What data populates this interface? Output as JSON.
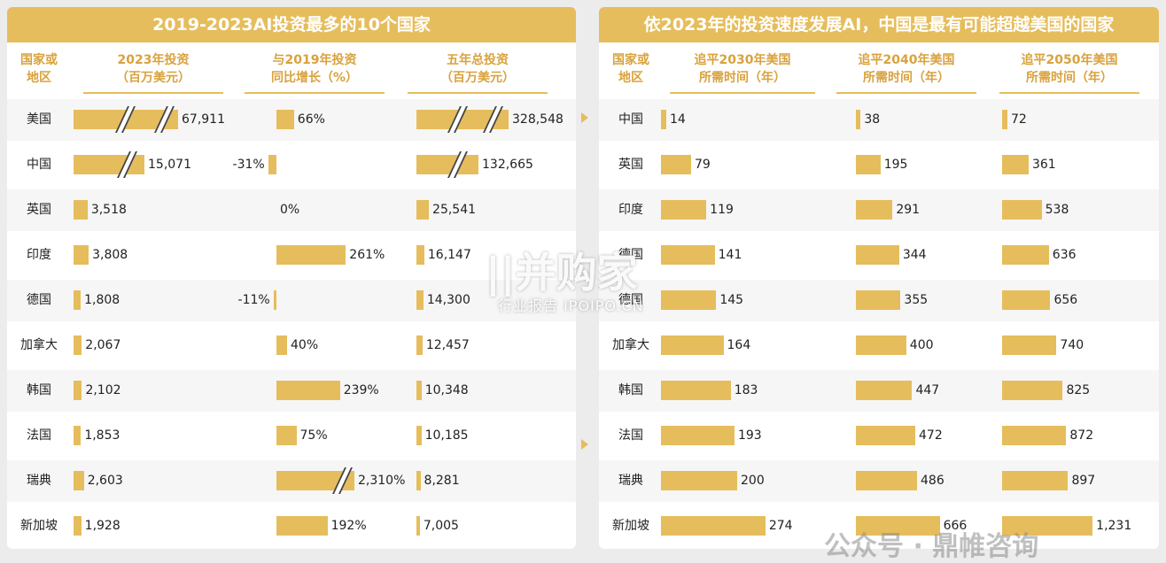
{
  "chart_data": [
    {
      "type": "bar",
      "title": "2019-2023AI投资最多的10个国家",
      "row_header": [
        "国家或",
        "地区"
      ],
      "categories": [
        "美国",
        "中国",
        "英国",
        "印度",
        "德国",
        "加拿大",
        "韩国",
        "法国",
        "瑞典",
        "新加坡"
      ],
      "series": [
        {
          "name": "2023年投资（百万美元）",
          "header_lines": [
            "2023年投资",
            "（百万美元）"
          ],
          "values": [
            67911,
            15071,
            3518,
            3808,
            1808,
            2067,
            2102,
            1853,
            2603,
            1928
          ],
          "labels": [
            "67,911",
            "15,071",
            "3,518",
            "3,808",
            "1,808",
            "2,067",
            "2,102",
            "1,853",
            "2,603",
            "1,928"
          ],
          "broken": [
            true,
            true,
            false,
            false,
            false,
            false,
            false,
            false,
            false,
            false
          ]
        },
        {
          "name": "与2019年投资同比增长（%）",
          "header_lines": [
            "与2019年投资",
            "同比增长（%）"
          ],
          "values": [
            66,
            -31,
            0,
            261,
            -11,
            40,
            239,
            75,
            2310,
            192
          ],
          "labels": [
            "66%",
            "-31%",
            "0%",
            "261%",
            "-11%",
            "40%",
            "239%",
            "75%",
            "2,310%",
            "192%"
          ],
          "broken": [
            false,
            false,
            false,
            false,
            false,
            false,
            false,
            false,
            true,
            false
          ]
        },
        {
          "name": "五年总投资（百万美元）",
          "header_lines": [
            "五年总投资",
            "（百万美元）"
          ],
          "values": [
            328548,
            132665,
            25541,
            16147,
            14300,
            12457,
            10348,
            10185,
            8281,
            7005
          ],
          "labels": [
            "328,548",
            "132,665",
            "25,541",
            "16,147",
            "14,300",
            "12,457",
            "10,348",
            "10,185",
            "8,281",
            "7,005"
          ],
          "broken": [
            true,
            true,
            false,
            false,
            false,
            false,
            false,
            false,
            false,
            false
          ]
        }
      ]
    },
    {
      "type": "bar",
      "title": "依2023年的投资速度发展AI，中国是最有可能超越美国的国家",
      "row_header": [
        "国家或",
        "地区"
      ],
      "categories": [
        "中国",
        "英国",
        "印度",
        "德国",
        "德国",
        "加拿大",
        "韩国",
        "法国",
        "瑞典",
        "新加坡"
      ],
      "series": [
        {
          "name": "追平2030年美国所需时间（年）",
          "header_lines": [
            "追平2030年美国",
            "所需时间（年）"
          ],
          "values": [
            14,
            79,
            119,
            141,
            145,
            164,
            183,
            193,
            200,
            274
          ],
          "labels": [
            "14",
            "79",
            "119",
            "141",
            "145",
            "164",
            "183",
            "193",
            "200",
            "274"
          ]
        },
        {
          "name": "追平2040年美国所需时间（年）",
          "header_lines": [
            "追平2040年美国",
            "所需时间（年）"
          ],
          "values": [
            38,
            195,
            291,
            344,
            355,
            400,
            447,
            472,
            486,
            666
          ],
          "labels": [
            "38",
            "195",
            "291",
            "344",
            "355",
            "400",
            "447",
            "472",
            "486",
            "666"
          ]
        },
        {
          "name": "追平2050年美国所需时间（年）",
          "header_lines": [
            "追平2050年美国",
            "所需时间（年）"
          ],
          "values": [
            72,
            361,
            538,
            636,
            656,
            740,
            825,
            872,
            897,
            1231
          ],
          "labels": [
            "72",
            "361",
            "538",
            "636",
            "656",
            "740",
            "825",
            "872",
            "897",
            "1,231"
          ]
        }
      ]
    }
  ],
  "watermarks": {
    "brand_main": "||并购家",
    "brand_sub": "行业报告 IPOIPO.CN",
    "footer": "公众号 · 鼎帷咨询"
  },
  "colors": {
    "accent": "#e6bd5c",
    "header_text": "#d9a23d",
    "row_alt": "#f6f6f6"
  }
}
